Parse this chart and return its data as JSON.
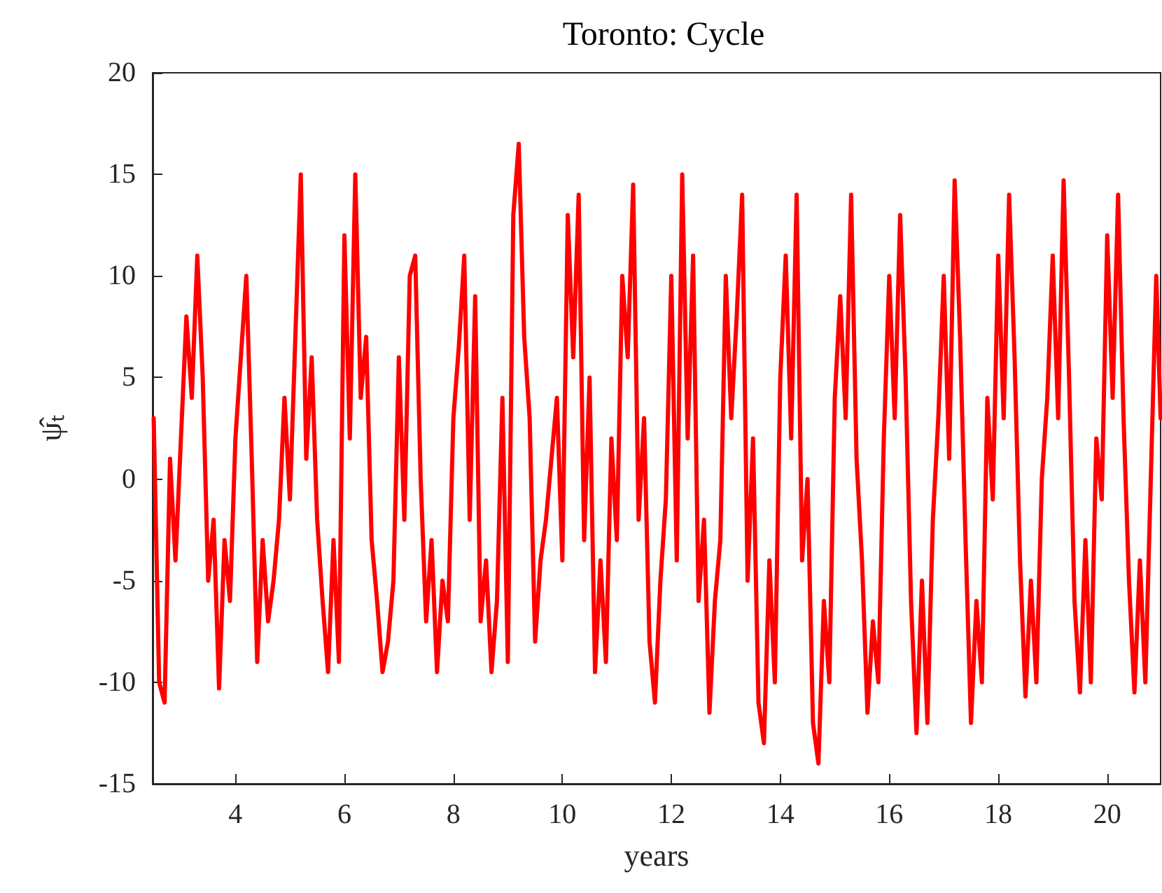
{
  "chart_data": {
    "type": "line",
    "title": "Toronto: Cycle",
    "xlabel": "years",
    "ylabel": "ψ̂ₜ",
    "x": [
      2.5,
      2.6,
      2.7,
      2.8,
      2.9,
      3.0,
      3.1,
      3.2,
      3.3,
      3.4,
      3.5,
      3.6,
      3.7,
      3.8,
      3.9,
      4.0,
      4.1,
      4.2,
      4.3,
      4.4,
      4.5,
      4.6,
      4.7,
      4.8,
      4.9,
      5.0,
      5.1,
      5.2,
      5.3,
      5.4,
      5.5,
      5.6,
      5.7,
      5.8,
      5.9,
      6.0,
      6.1,
      6.2,
      6.3,
      6.4,
      6.5,
      6.6,
      6.7,
      6.8,
      6.9,
      7.0,
      7.1,
      7.2,
      7.3,
      7.4,
      7.5,
      7.6,
      7.7,
      7.8,
      7.9,
      8.0,
      8.1,
      8.2,
      8.3,
      8.4,
      8.5,
      8.6,
      8.7,
      8.8,
      8.9,
      9.0,
      9.1,
      9.2,
      9.3,
      9.4,
      9.5,
      9.6,
      9.7,
      9.8,
      9.9,
      10.0,
      10.1,
      10.2,
      10.3,
      10.4,
      10.5,
      10.6,
      10.7,
      10.8,
      10.9,
      11.0,
      11.1,
      11.2,
      11.3,
      11.4,
      11.5,
      11.6,
      11.7,
      11.8,
      11.9,
      12.0,
      12.1,
      12.2,
      12.3,
      12.4,
      12.5,
      12.6,
      12.7,
      12.8,
      12.9,
      13.0,
      13.1,
      13.2,
      13.3,
      13.4,
      13.5,
      13.6,
      13.7,
      13.8,
      13.9,
      14.0,
      14.1,
      14.2,
      14.3,
      14.4,
      14.5,
      14.6,
      14.7,
      14.8,
      14.9,
      15.0,
      15.1,
      15.2,
      15.3,
      15.4,
      15.5,
      15.6,
      15.7,
      15.8,
      15.9,
      16.0,
      16.1,
      16.2,
      16.3,
      16.4,
      16.5,
      16.6,
      16.7,
      16.8,
      16.9,
      17.0,
      17.1,
      17.2,
      17.3,
      17.4,
      17.5,
      17.6,
      17.7,
      17.8,
      17.9,
      18.0,
      18.1,
      18.2,
      18.3,
      18.4,
      18.5,
      18.6,
      18.7,
      18.8,
      18.9,
      19.0,
      19.1,
      19.2,
      19.3,
      19.4,
      19.5,
      19.6,
      19.7,
      19.8,
      19.9,
      20.0,
      20.1,
      20.2,
      20.3,
      20.4,
      20.5,
      20.6,
      20.7,
      20.8,
      20.9,
      20.98
    ],
    "series": [
      {
        "color": "#ff0000",
        "values": [
          3,
          -10,
          -11,
          1,
          -4,
          2,
          8,
          4,
          11,
          5,
          -5,
          -2,
          -10.3,
          -3,
          -6,
          2,
          6,
          10,
          1,
          -9,
          -3,
          -7,
          -5,
          -2,
          4,
          -1,
          7,
          15,
          1,
          6,
          -2,
          -6,
          -9.5,
          -3,
          -9,
          12,
          2,
          15,
          4,
          7,
          -3,
          -6,
          -9.5,
          -8,
          -5,
          6,
          -2,
          10,
          11,
          0,
          -7,
          -3,
          -9.5,
          -5,
          -7,
          3,
          6.5,
          11,
          -2,
          9,
          -7,
          -4,
          -9.5,
          -6,
          4,
          -9,
          13,
          16.5,
          7,
          3,
          -8,
          -4,
          -2,
          1,
          4,
          -4,
          13,
          6,
          14,
          -3,
          5,
          -9.5,
          -4,
          -9,
          2,
          -3,
          10,
          6,
          14.5,
          -2,
          3,
          -8,
          -11,
          -5,
          -1,
          10,
          -4,
          15,
          2,
          11,
          -6,
          -2,
          -11.5,
          -6,
          -3,
          10,
          3,
          8,
          14,
          -5,
          2,
          -11,
          -13,
          -4,
          -10,
          5,
          11,
          2,
          14,
          -4,
          0,
          -12,
          -14,
          -6,
          -10,
          4,
          9,
          3,
          14,
          1,
          -4,
          -11.5,
          -7,
          -10,
          2,
          10,
          3,
          13,
          5,
          -6,
          -12.5,
          -5,
          -12,
          -2,
          3,
          10,
          1,
          14.7,
          7,
          -3,
          -12,
          -6,
          -10,
          4,
          -1,
          11,
          3,
          14,
          6,
          -4,
          -10.7,
          -5,
          -10,
          0,
          4,
          11,
          3,
          14.7,
          5,
          -6,
          -10.5,
          -3,
          -10,
          2,
          -1,
          12,
          4,
          14,
          3,
          -5,
          -10.5,
          -4,
          -10,
          0,
          10,
          3
        ]
      }
    ],
    "xlim": [
      2.48,
      20.98
    ],
    "xticks": [
      4,
      6,
      8,
      10,
      12,
      14,
      16,
      18,
      20
    ],
    "ylim": [
      -15,
      20
    ],
    "yticks": [
      -15,
      -10,
      -5,
      0,
      5,
      10,
      15,
      20
    ],
    "grid": false,
    "marker": "none",
    "line_style": "solid"
  }
}
